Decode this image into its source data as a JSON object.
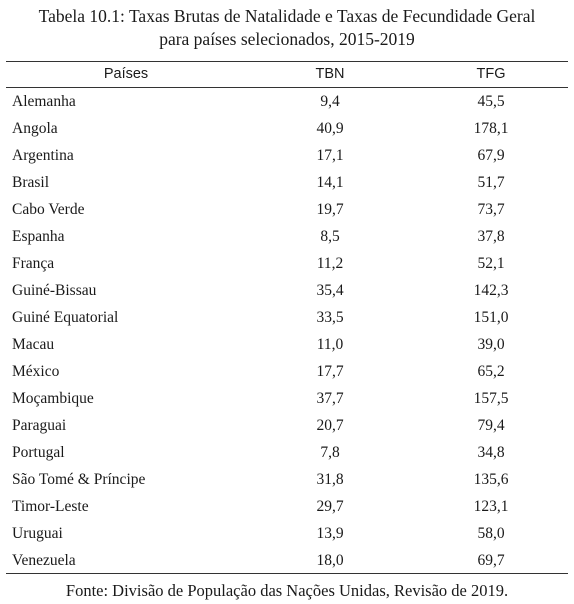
{
  "caption": {
    "line1": "Tabela 10.1: Taxas Brutas de Natalidade e Taxas de Fecundidade Geral",
    "line2": "para países selecionados, 2015-2019"
  },
  "table": {
    "headers": {
      "country": "Países",
      "tbn": "TBN",
      "tfg": "TFG"
    },
    "rows": [
      {
        "country": "Alemanha",
        "tbn": "9,4",
        "tfg": "45,5"
      },
      {
        "country": "Angola",
        "tbn": "40,9",
        "tfg": "178,1"
      },
      {
        "country": "Argentina",
        "tbn": "17,1",
        "tfg": "67,9"
      },
      {
        "country": "Brasil",
        "tbn": "14,1",
        "tfg": "51,7"
      },
      {
        "country": "Cabo Verde",
        "tbn": "19,7",
        "tfg": "73,7"
      },
      {
        "country": "Espanha",
        "tbn": "8,5",
        "tfg": "37,8"
      },
      {
        "country": "França",
        "tbn": "11,2",
        "tfg": "52,1"
      },
      {
        "country": "Guiné-Bissau",
        "tbn": "35,4",
        "tfg": "142,3"
      },
      {
        "country": "Guiné Equatorial",
        "tbn": "33,5",
        "tfg": "151,0"
      },
      {
        "country": "Macau",
        "tbn": "11,0",
        "tfg": "39,0"
      },
      {
        "country": "México",
        "tbn": "17,7",
        "tfg": "65,2"
      },
      {
        "country": "Moçambique",
        "tbn": "37,7",
        "tfg": "157,5"
      },
      {
        "country": "Paraguai",
        "tbn": "20,7",
        "tfg": "79,4"
      },
      {
        "country": "Portugal",
        "tbn": "7,8",
        "tfg": "34,8"
      },
      {
        "country": "São Tomé & Príncipe",
        "tbn": "31,8",
        "tfg": "135,6"
      },
      {
        "country": "Timor-Leste",
        "tbn": "29,7",
        "tfg": "123,1"
      },
      {
        "country": "Uruguai",
        "tbn": "13,9",
        "tfg": "58,0"
      },
      {
        "country": "Venezuela",
        "tbn": "18,0",
        "tfg": "69,7"
      }
    ]
  },
  "source": "Fonte: Divisão de População das Nações Unidas, Revisão de 2019."
}
